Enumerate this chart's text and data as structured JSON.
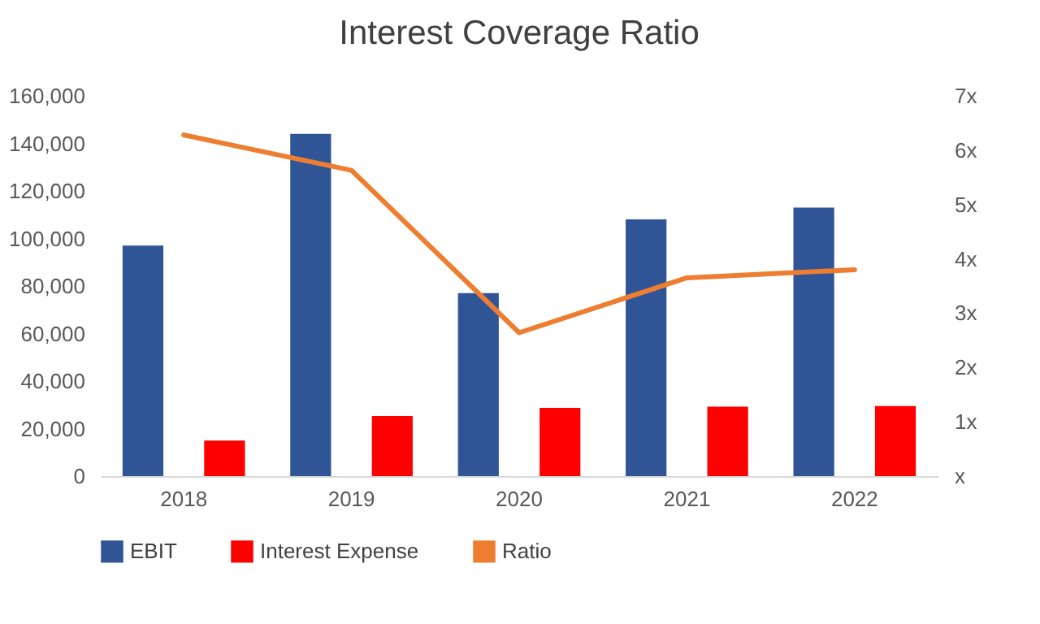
{
  "chart_data": {
    "type": "bar",
    "title": "Interest Coverage Ratio",
    "categories": [
      "2018",
      "2019",
      "2020",
      "2021",
      "2022"
    ],
    "series": [
      {
        "name": "EBIT",
        "color": "#2f5597",
        "values": [
          97000,
          144000,
          77000,
          108000,
          113000
        ]
      },
      {
        "name": "Interest Expense",
        "color": "#ff0000",
        "values": [
          15000,
          25300,
          28700,
          29200,
          29500
        ]
      },
      {
        "name": "Ratio",
        "type": "line",
        "axis": "y2",
        "color": "#ed7d31",
        "values": [
          6.28,
          5.63,
          2.64,
          3.65,
          3.8
        ]
      }
    ],
    "ylim": [
      0,
      160000
    ],
    "yticks": [
      0,
      {
        "value": 20000,
        "label": "20,000"
      },
      {
        "value": 40000,
        "label": "40,000"
      },
      {
        "value": 60000,
        "label": "60,000"
      },
      {
        "value": 80000,
        "label": "80,000"
      },
      {
        "value": 100000,
        "label": "100,000"
      },
      {
        "value": 120000,
        "label": "120,000"
      },
      {
        "value": 140000,
        "label": "140,000"
      },
      {
        "value": 160000,
        "label": "160,000"
      }
    ],
    "y2lim": [
      0,
      7
    ],
    "y2ticks": [
      {
        "value": 0,
        "label": "x"
      },
      {
        "value": 1,
        "label": "1x"
      },
      {
        "value": 2,
        "label": "2x"
      },
      {
        "value": 3,
        "label": "3x"
      },
      {
        "value": 4,
        "label": "4x"
      },
      {
        "value": 5,
        "label": "5x"
      },
      {
        "value": 6,
        "label": "6x"
      },
      {
        "value": 7,
        "label": "7x"
      }
    ],
    "legend": "bottom"
  }
}
